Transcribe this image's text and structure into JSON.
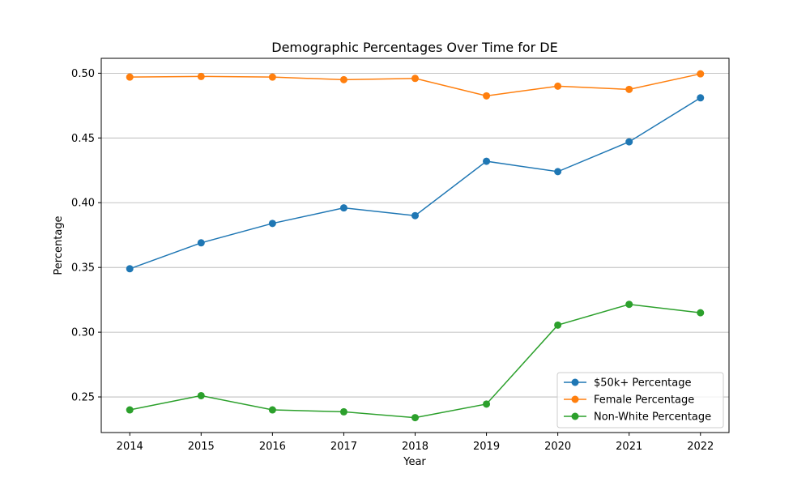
{
  "chart_data": {
    "type": "line",
    "title": "Demographic Percentages Over Time for DE",
    "xlabel": "Year",
    "ylabel": "Percentage",
    "x": [
      2014,
      2015,
      2016,
      2017,
      2018,
      2019,
      2020,
      2021,
      2022
    ],
    "x_ticks": [
      "2014",
      "2015",
      "2016",
      "2017",
      "2018",
      "2019",
      "2020",
      "2021",
      "2022"
    ],
    "xlim": [
      2013.6,
      2022.4
    ],
    "ylim": [
      0.2225,
      0.5115
    ],
    "y_ticks": [
      0.25,
      0.3,
      0.35,
      0.4,
      0.45,
      0.5
    ],
    "y_tick_labels": [
      "0.25",
      "0.30",
      "0.35",
      "0.40",
      "0.45",
      "0.50"
    ],
    "grid": "y",
    "legend_position": "lower-right",
    "series": [
      {
        "name": "$50k+ Percentage",
        "color": "#1f77b4",
        "values": [
          0.349,
          0.369,
          0.384,
          0.396,
          0.39,
          0.432,
          0.424,
          0.447,
          0.481
        ]
      },
      {
        "name": "Female Percentage",
        "color": "#ff7f0e",
        "values": [
          0.497,
          0.4975,
          0.497,
          0.495,
          0.496,
          0.4825,
          0.49,
          0.4875,
          0.4995
        ]
      },
      {
        "name": "Non-White Percentage",
        "color": "#2ca02c",
        "values": [
          0.24,
          0.251,
          0.24,
          0.2385,
          0.234,
          0.2445,
          0.3055,
          0.3215,
          0.315
        ]
      }
    ]
  }
}
